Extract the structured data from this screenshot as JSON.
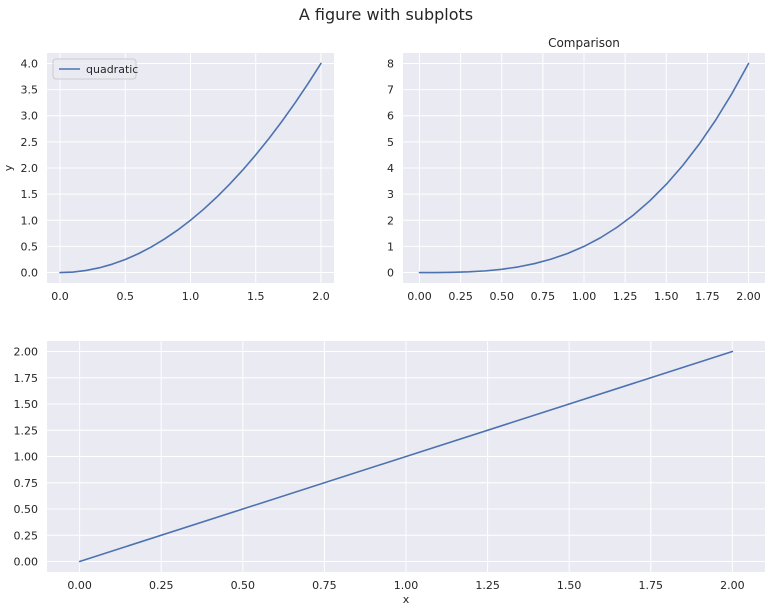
{
  "figure": {
    "suptitle": "A figure with subplots"
  },
  "chart_data": [
    {
      "type": "line",
      "title": "",
      "xlabel": "",
      "ylabel": "y",
      "xlim": [
        -0.1,
        2.1
      ],
      "ylim": [
        -0.2,
        4.2
      ],
      "xticks": [
        0.0,
        0.5,
        1.0,
        1.5,
        2.0
      ],
      "xtick_labels": [
        "0.0",
        "0.5",
        "1.0",
        "1.5",
        "2.0"
      ],
      "yticks": [
        0.0,
        0.5,
        1.0,
        1.5,
        2.0,
        2.5,
        3.0,
        3.5,
        4.0
      ],
      "ytick_labels": [
        "0.0",
        "0.5",
        "1.0",
        "1.5",
        "2.0",
        "2.5",
        "3.0",
        "3.5",
        "4.0"
      ],
      "grid": true,
      "legend": {
        "placement": "upper-left",
        "entries": [
          "quadratic"
        ]
      },
      "series": [
        {
          "name": "quadratic",
          "color": "#4c72b0",
          "x": [
            0,
            0.1,
            0.2,
            0.3,
            0.4,
            0.5,
            0.6,
            0.7,
            0.8,
            0.9,
            1.0,
            1.1,
            1.2,
            1.3,
            1.4,
            1.5,
            1.6,
            1.7,
            1.8,
            1.9,
            2.0
          ],
          "y": [
            0,
            0.01,
            0.04,
            0.09,
            0.16,
            0.25,
            0.36,
            0.49,
            0.64,
            0.81,
            1.0,
            1.21,
            1.44,
            1.69,
            1.96,
            2.25,
            2.56,
            2.89,
            3.24,
            3.61,
            4.0
          ]
        }
      ]
    },
    {
      "type": "line",
      "title": "Comparison",
      "xlabel": "",
      "ylabel": "",
      "xlim": [
        -0.1,
        2.1
      ],
      "ylim": [
        -0.4,
        8.4
      ],
      "xticks": [
        0.0,
        0.25,
        0.5,
        0.75,
        1.0,
        1.25,
        1.5,
        1.75,
        2.0
      ],
      "xtick_labels": [
        "0.00",
        "0.25",
        "0.50",
        "0.75",
        "1.00",
        "1.25",
        "1.50",
        "1.75",
        "2.00"
      ],
      "yticks": [
        0,
        1,
        2,
        3,
        4,
        5,
        6,
        7,
        8
      ],
      "ytick_labels": [
        "0",
        "1",
        "2",
        "3",
        "4",
        "5",
        "6",
        "7",
        "8"
      ],
      "grid": true,
      "series": [
        {
          "color": "#4c72b0",
          "x": [
            0,
            0.1,
            0.2,
            0.3,
            0.4,
            0.5,
            0.6,
            0.7,
            0.8,
            0.9,
            1.0,
            1.1,
            1.2,
            1.3,
            1.4,
            1.5,
            1.6,
            1.7,
            1.8,
            1.9,
            2.0
          ],
          "y": [
            0,
            0.001,
            0.008,
            0.027,
            0.064,
            0.125,
            0.216,
            0.343,
            0.512,
            0.729,
            1.0,
            1.331,
            1.728,
            2.197,
            2.744,
            3.375,
            4.096,
            4.913,
            5.832,
            6.859,
            8.0
          ]
        }
      ]
    },
    {
      "type": "line",
      "title": "",
      "xlabel": "x",
      "ylabel": "",
      "xlim": [
        -0.1,
        2.1
      ],
      "ylim": [
        -0.1,
        2.1
      ],
      "xticks": [
        0.0,
        0.25,
        0.5,
        0.75,
        1.0,
        1.25,
        1.5,
        1.75,
        2.0
      ],
      "xtick_labels": [
        "0.00",
        "0.25",
        "0.50",
        "0.75",
        "1.00",
        "1.25",
        "1.50",
        "1.75",
        "2.00"
      ],
      "yticks": [
        0.0,
        0.25,
        0.5,
        0.75,
        1.0,
        1.25,
        1.5,
        1.75,
        2.0
      ],
      "ytick_labels": [
        "0.00",
        "0.25",
        "0.50",
        "0.75",
        "1.00",
        "1.25",
        "1.50",
        "1.75",
        "2.00"
      ],
      "grid": true,
      "series": [
        {
          "color": "#4c72b0",
          "x": [
            0,
            2.0
          ],
          "y": [
            0,
            2.0
          ]
        }
      ]
    }
  ]
}
